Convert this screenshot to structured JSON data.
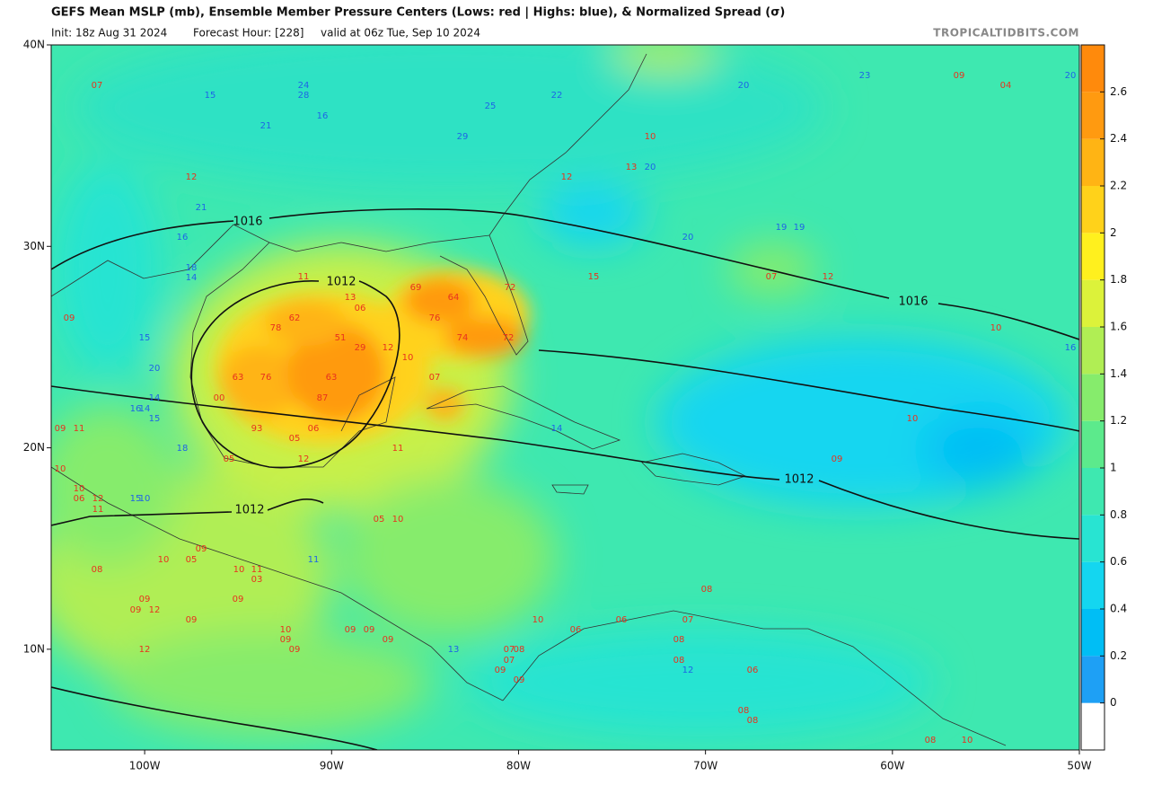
{
  "header": {
    "title": "GEFS Mean MSLP (mb), Ensemble Member Pressure Centers (Lows: red | Highs: blue), & Normalized Spread (σ)",
    "init": "Init: 18z Aug 31 2024",
    "forecast_hour": "Forecast Hour: [228]",
    "valid": "valid at 06z Tue, Sep 10 2024",
    "credit": "TROPICALTIDBITS.COM"
  },
  "map": {
    "xlim": [
      -105,
      -50
    ],
    "ylim": [
      5,
      40
    ],
    "xticks": [
      {
        "value": -100,
        "label": "100W"
      },
      {
        "value": -90,
        "label": "90W"
      },
      {
        "value": -80,
        "label": "80W"
      },
      {
        "value": -70,
        "label": "70W"
      },
      {
        "value": -60,
        "label": "60W"
      },
      {
        "value": -50,
        "label": "50W"
      }
    ],
    "yticks": [
      {
        "value": 40,
        "label": "40N"
      },
      {
        "value": 30,
        "label": "30N"
      },
      {
        "value": 20,
        "label": "20N"
      },
      {
        "value": 10,
        "label": "10N"
      }
    ],
    "contour_labels": [
      "1016",
      "1012",
      "1012",
      "1016",
      "1012"
    ],
    "lows": [
      "07",
      "12",
      "09",
      "11",
      "13",
      "06",
      "62",
      "78",
      "51",
      "29",
      "12",
      "10",
      "63",
      "76",
      "63",
      "00",
      "87",
      "93",
      "05",
      "06",
      "12",
      "05",
      "11",
      "69",
      "64",
      "76",
      "74",
      "72",
      "72",
      "07",
      "15",
      "10",
      "13",
      "12",
      "09",
      "04",
      "07",
      "12",
      "10",
      "10",
      "09",
      "09",
      "11",
      "10",
      "10",
      "06",
      "12",
      "11",
      "10",
      "09",
      "05",
      "08",
      "10",
      "11",
      "03",
      "09",
      "09",
      "09",
      "12",
      "09",
      "10",
      "09",
      "09",
      "12",
      "09",
      "09",
      "09",
      "05",
      "10",
      "10",
      "06",
      "08",
      "07",
      "08",
      "07",
      "09",
      "09",
      "06",
      "08",
      "08",
      "07",
      "06",
      "08",
      "08",
      "08",
      "10"
    ],
    "highs": [
      "15",
      "24",
      "28",
      "16",
      "21",
      "22",
      "25",
      "29",
      "20",
      "23",
      "20",
      "20",
      "20",
      "19",
      "19",
      "21",
      "16",
      "18",
      "14",
      "15",
      "20",
      "14",
      "16",
      "14",
      "15",
      "18",
      "15",
      "10",
      "16",
      "14",
      "11",
      "13",
      "12"
    ]
  },
  "colorbar": {
    "ylim": [
      -0.2,
      2.8
    ],
    "yticks": [
      0,
      0.2,
      0.4,
      0.6,
      0.8,
      1,
      1.2,
      1.4,
      1.6,
      1.8,
      2,
      2.2,
      2.4,
      2.6
    ],
    "colors": [
      "#ffffff",
      "#1ea0f5",
      "#00bef5",
      "#14d6f0",
      "#28e4d2",
      "#3ee8b0",
      "#5cea8c",
      "#86ec6c",
      "#b0ee54",
      "#dcf23a",
      "#fff01e",
      "#ffd21a",
      "#ffb414",
      "#ff9a10",
      "#ff8a0c"
    ]
  }
}
